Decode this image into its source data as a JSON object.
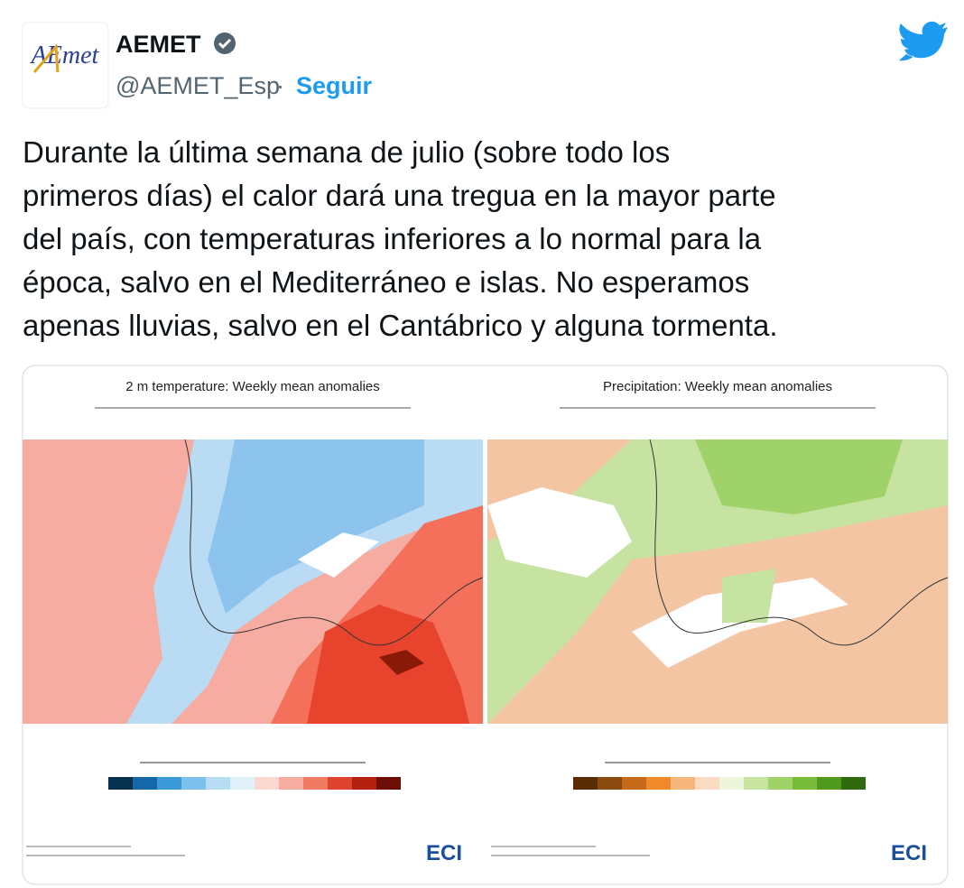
{
  "header": {
    "logo_text": "AEmet",
    "name": "AEMET",
    "handle": "@AEMET_Esp",
    "separator": "·",
    "follow": "Seguir"
  },
  "tweet": {
    "lines": [
      "Durante la última semana de julio (sobre todo los",
      "primeros días) el calor dará una tregua en la mayor parte",
      "del país, con temperaturas inferiores a lo normal para la",
      "época, salvo en el Mediterráneo e islas. No esperamos",
      "apenas lluvias, salvo en el Cantábrico y alguna tormenta."
    ]
  },
  "media": {
    "panels": [
      {
        "title": "2 m temperature: Weekly mean anomalies",
        "logo": "ECI"
      },
      {
        "title": "Precipitation: Weekly mean anomalies",
        "logo": "ECI"
      }
    ]
  }
}
